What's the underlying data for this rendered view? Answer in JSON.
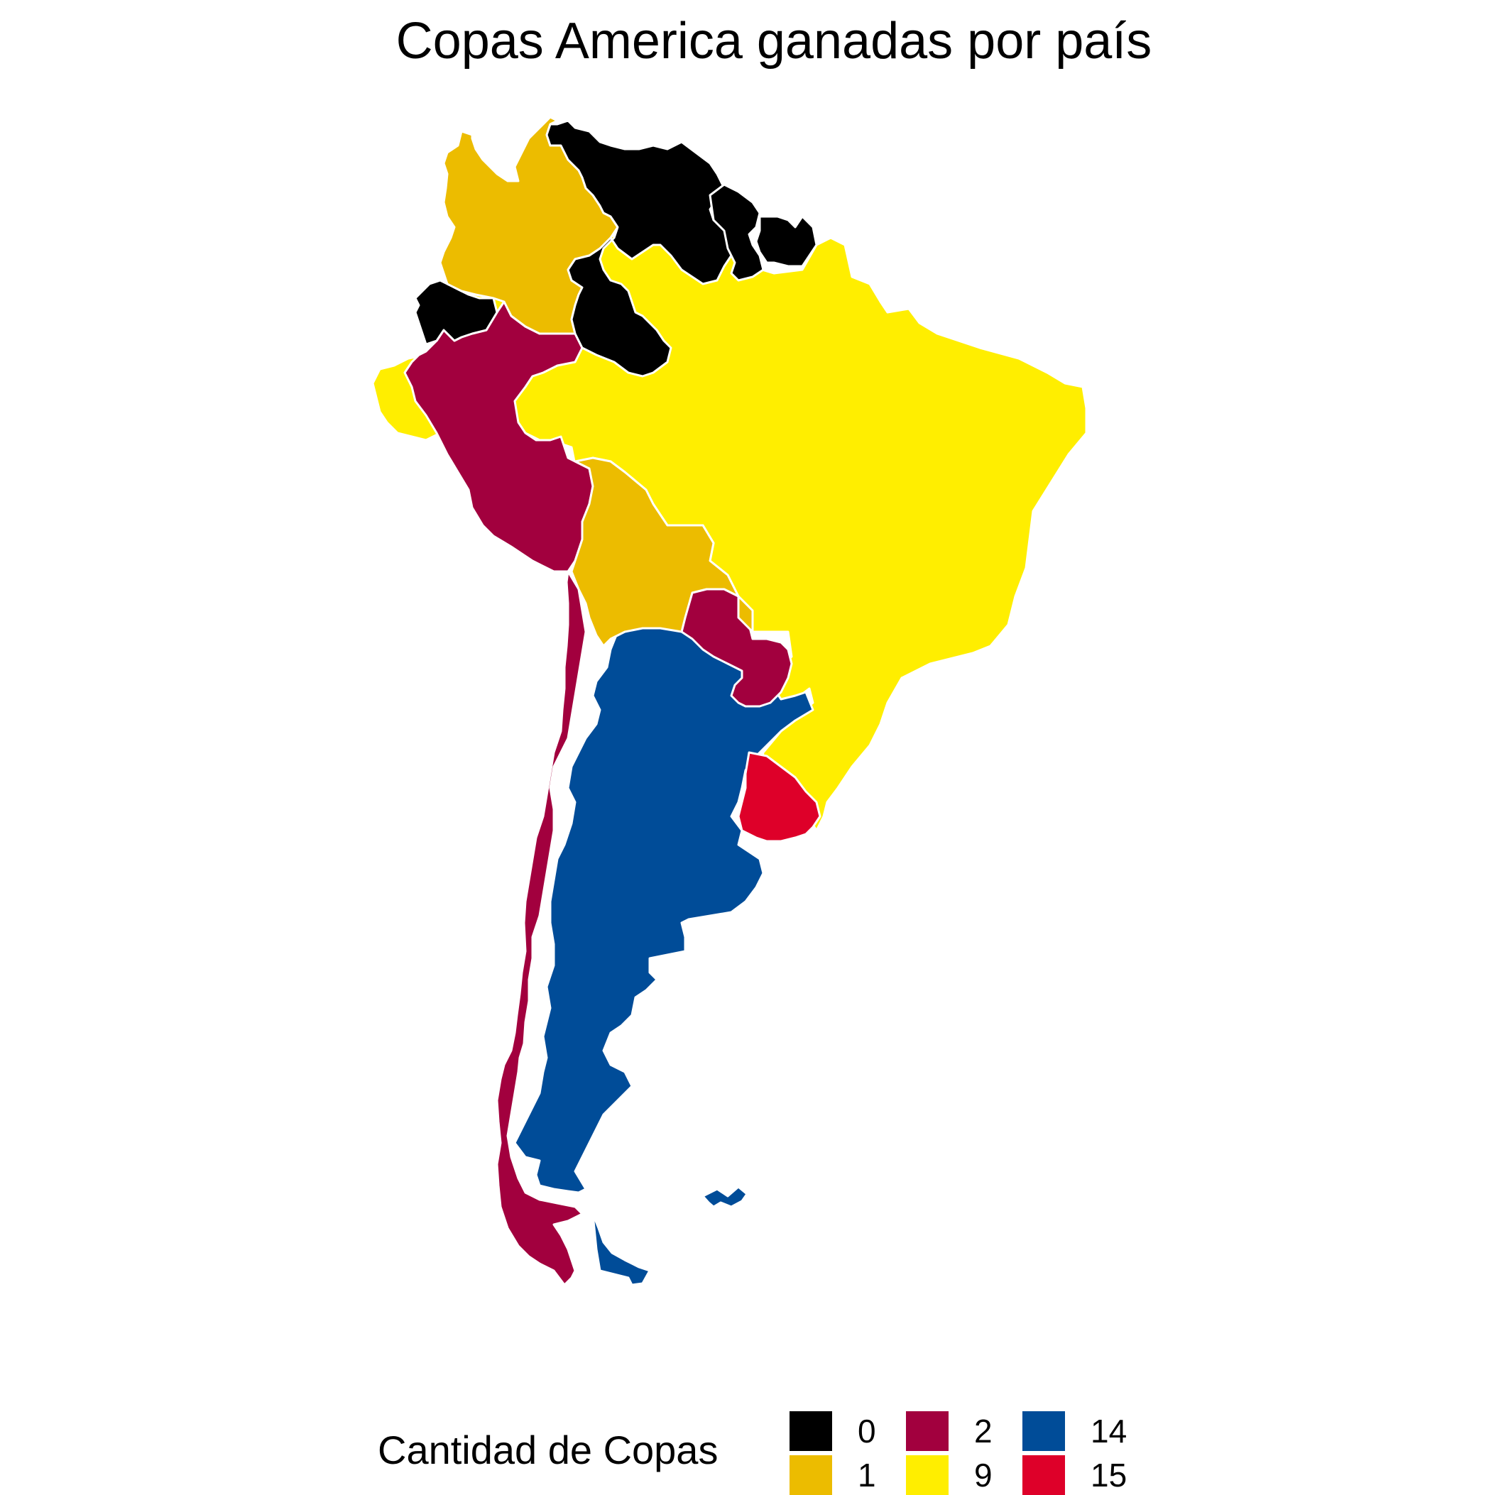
{
  "title": "Copas America ganadas por país",
  "legend": {
    "title": "Cantidad de Copas",
    "items": [
      {
        "label": "0",
        "color": "#000000"
      },
      {
        "label": "1",
        "color": "#ecbc00"
      },
      {
        "label": "2",
        "color": "#a2003e"
      },
      {
        "label": "9",
        "color": "#ffee00"
      },
      {
        "label": "14",
        "color": "#004c98"
      },
      {
        "label": "15",
        "color": "#de0029"
      }
    ]
  },
  "chart_data": {
    "type": "choropleth",
    "title": "Copas America ganadas por país",
    "legend_title": "Cantidad de Copas",
    "legend_position": "bottom",
    "categories": [
      "0",
      "1",
      "2",
      "9",
      "14",
      "15"
    ],
    "colors": {
      "0": "#000000",
      "1": "#ecbc00",
      "2": "#a2003e",
      "9": "#ffee00",
      "14": "#004c98",
      "15": "#de0029"
    },
    "regions": [
      {
        "id": "venezuela",
        "value": 0
      },
      {
        "id": "guyana",
        "value": 0
      },
      {
        "id": "suriname",
        "value": 0
      },
      {
        "id": "ecuador",
        "value": 0
      },
      {
        "id": "colombia",
        "value": 1
      },
      {
        "id": "bolivia",
        "value": 1
      },
      {
        "id": "peru",
        "value": 2
      },
      {
        "id": "chile",
        "value": 2
      },
      {
        "id": "paraguay",
        "value": 2
      },
      {
        "id": "brazil",
        "value": 9
      },
      {
        "id": "argentina",
        "value": 14
      },
      {
        "id": "uruguay",
        "value": 15
      }
    ]
  }
}
